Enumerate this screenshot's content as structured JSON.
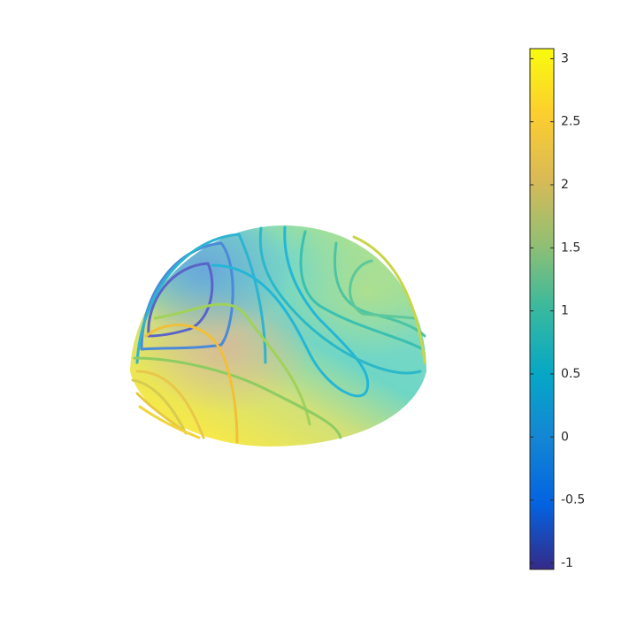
{
  "chart_data": {
    "type": "surface",
    "colormap": "parula",
    "clim": [
      -1.05,
      3.08
    ],
    "cticks": [
      -1,
      -0.5,
      0,
      0.5,
      1,
      1.5,
      2,
      2.5,
      3
    ]
  }
}
